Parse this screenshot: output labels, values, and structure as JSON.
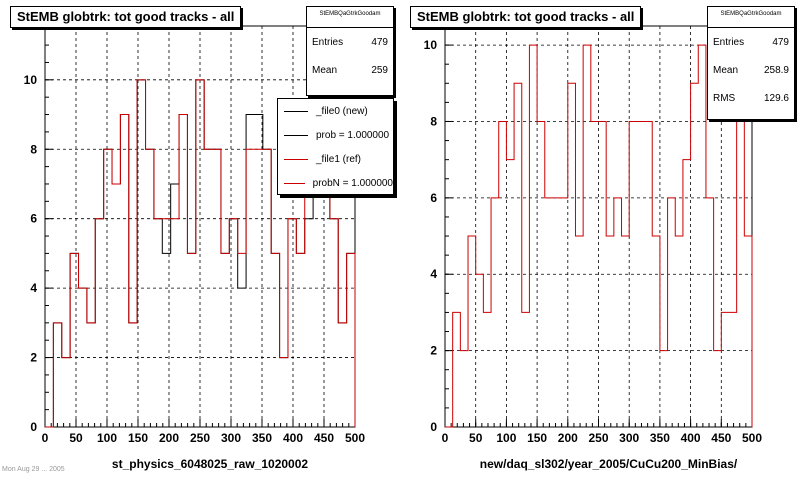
{
  "footer": {
    "text": "Mon Aug 29 ... 2005"
  },
  "chart_data": [
    {
      "type": "line",
      "title": "StEMB globtrk: tot good tracks - all",
      "xlabel": "st_physics_6048025_raw_1020002",
      "ylabel": "",
      "xlim": [
        0,
        500
      ],
      "ylim": [
        0,
        11.55
      ],
      "grid": true,
      "x_ticks": [
        "0",
        "50",
        "100",
        "150",
        "200",
        "250",
        "300",
        "350",
        "400",
        "450",
        "500"
      ],
      "y_ticks": [
        "0",
        "2",
        "4",
        "6",
        "8",
        "10"
      ],
      "stats": {
        "name": "StEMBQaGtrkGoodam",
        "entries_label": "Entries",
        "entries": "479",
        "mean_label": "Mean",
        "mean": "259"
      },
      "legend": [
        {
          "label": "_file0 (new)",
          "color": "#000000"
        },
        {
          "label": "prob = 1.000000",
          "color": "#000000"
        },
        {
          "label": "_file1 (ref)",
          "color": "#cc0000"
        },
        {
          "label": "probN = 1.000000",
          "color": "#cc0000"
        }
      ],
      "series": [
        {
          "color": "#000000",
          "values": [
            0,
            3,
            2,
            5,
            4,
            3,
            6,
            8,
            7,
            9,
            3,
            10,
            8,
            6,
            5,
            7,
            9,
            5,
            10,
            8,
            8,
            5,
            6,
            4,
            9,
            9,
            8,
            5,
            2,
            6,
            5,
            6,
            9,
            11,
            6,
            3,
            5
          ]
        },
        {
          "color": "#cc0000",
          "values": [
            0,
            3,
            2,
            5,
            4,
            3,
            6,
            8,
            7,
            9,
            3,
            10,
            8,
            6,
            6,
            6,
            9,
            5,
            10,
            8,
            8,
            5,
            6,
            5,
            8,
            8,
            8,
            5,
            2,
            6,
            5,
            7,
            9,
            10,
            6,
            3,
            5
          ]
        }
      ]
    },
    {
      "type": "line",
      "title": "StEMB globtrk: tot good tracks - all",
      "xlabel": "new/daq_sl302/year_2005/CuCu200_MinBias/",
      "ylabel": "",
      "xlim": [
        0,
        500
      ],
      "ylim": [
        0,
        10.5
      ],
      "grid": true,
      "x_ticks": [
        "0",
        "50",
        "100",
        "150",
        "200",
        "250",
        "300",
        "350",
        "400",
        "450",
        "500"
      ],
      "y_ticks": [
        "0",
        "2",
        "4",
        "6",
        "8",
        "10"
      ],
      "stats": {
        "name": "StEMBQaGtrkGoodam",
        "entries_label": "Entries",
        "entries": "479",
        "mean_label": "Mean",
        "mean": "258.9",
        "rms_label": "RMS",
        "rms": "129.6"
      },
      "series": [
        {
          "color": "#cc0000",
          "values": [
            0,
            3,
            2,
            5,
            4,
            3,
            6,
            8,
            7,
            9,
            3,
            10,
            8,
            6,
            6,
            6,
            9,
            5,
            10,
            8,
            8,
            5,
            6,
            5,
            8,
            8,
            8,
            5,
            2,
            6,
            5,
            7,
            9,
            10,
            6,
            2,
            3,
            3,
            10,
            5
          ]
        }
      ]
    }
  ]
}
